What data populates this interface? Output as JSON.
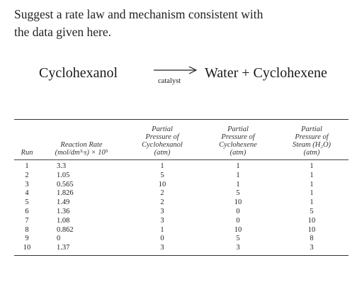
{
  "prompt": {
    "line1": "Suggest a rate law and mechanism consistent with",
    "line2": "the data given here."
  },
  "reaction": {
    "reactant": "Cyclohexanol",
    "catalyst": "catalyst",
    "products": "Water + Cyclohexene"
  },
  "table": {
    "headers": {
      "run": "Run",
      "rate": [
        "Reaction Rate",
        "(mol/dm³·s) × 10⁵"
      ],
      "p1": [
        "Partial",
        "Pressure of",
        "Cyclohexanol",
        "(atm)"
      ],
      "p2": [
        "Partial",
        "Pressure of",
        "Cyclohexene",
        "(atm)"
      ],
      "p3": [
        "Partial",
        "Pressure of",
        "Steam (H₂O)",
        "(atm)"
      ]
    },
    "rows": [
      {
        "run": "1",
        "rate": "3.3",
        "p1": "1",
        "p2": "1",
        "p3": "1"
      },
      {
        "run": "2",
        "rate": "1.05",
        "p1": "5",
        "p2": "1",
        "p3": "1"
      },
      {
        "run": "3",
        "rate": "0.565",
        "p1": "10",
        "p2": "1",
        "p3": "1"
      },
      {
        "run": "4",
        "rate": "1.826",
        "p1": "2",
        "p2": "5",
        "p3": "1"
      },
      {
        "run": "5",
        "rate": "1.49",
        "p1": "2",
        "p2": "10",
        "p3": "1"
      },
      {
        "run": "6",
        "rate": "1.36",
        "p1": "3",
        "p2": "0",
        "p3": "5"
      },
      {
        "run": "7",
        "rate": "1.08",
        "p1": "3",
        "p2": "0",
        "p3": "10"
      },
      {
        "run": "8",
        "rate": "0.862",
        "p1": "1",
        "p2": "10",
        "p3": "10"
      },
      {
        "run": "9",
        "rate": "0",
        "p1": "0",
        "p2": "5",
        "p3": "8"
      },
      {
        "run": "10",
        "rate": "1.37",
        "p1": "3",
        "p2": "3",
        "p3": "3"
      }
    ]
  }
}
